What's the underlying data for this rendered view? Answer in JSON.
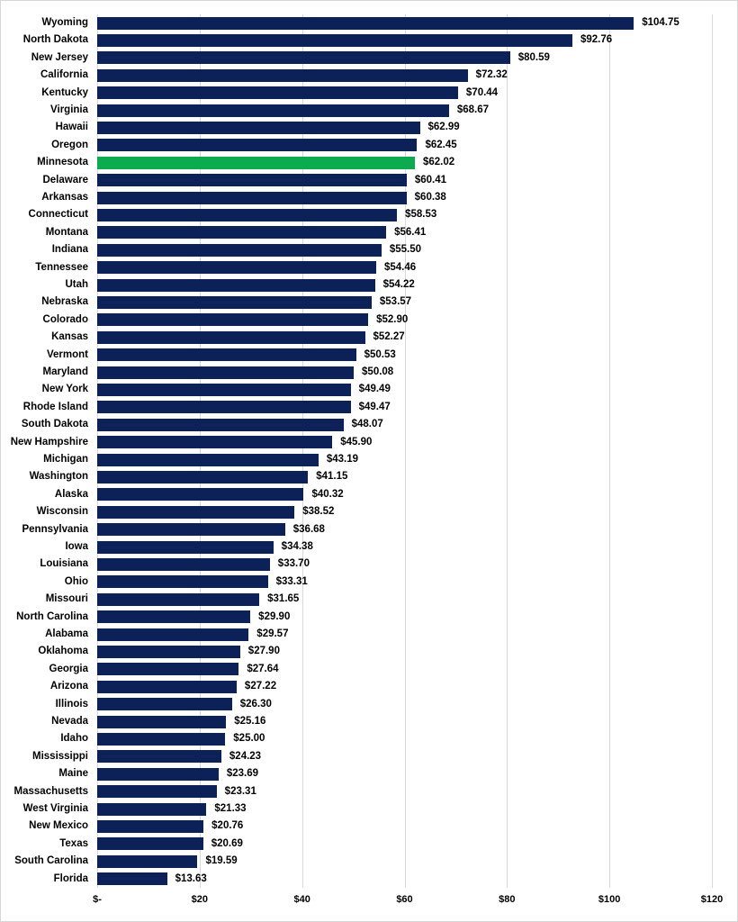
{
  "chart_data": {
    "type": "bar",
    "orientation": "horizontal",
    "title": "",
    "xlabel": "",
    "ylabel": "",
    "xlim": [
      0,
      120
    ],
    "grid": true,
    "legend": "none",
    "x_ticks": [
      "$-",
      "$20",
      "$40",
      "$60",
      "$80",
      "$100",
      "$120"
    ],
    "x_tick_values": [
      0,
      20,
      40,
      60,
      80,
      100,
      120
    ],
    "bar_color": "#0b2158",
    "highlight_color": "#0cab4f",
    "highlighted_category": "Minnesota",
    "value_prefix": "$",
    "categories": [
      "Wyoming",
      "North Dakota",
      "New Jersey",
      "California",
      "Kentucky",
      "Virginia",
      "Hawaii",
      "Oregon",
      "Minnesota",
      "Delaware",
      "Arkansas",
      "Connecticut",
      "Montana",
      "Indiana",
      "Tennessee",
      "Utah",
      "Nebraska",
      "Colorado",
      "Kansas",
      "Vermont",
      "Maryland",
      "New York",
      "Rhode Island",
      "South Dakota",
      "New Hampshire",
      "Michigan",
      "Washington",
      "Alaska",
      "Wisconsin",
      "Pennsylvania",
      "Iowa",
      "Louisiana",
      "Ohio",
      "Missouri",
      "North Carolina",
      "Alabama",
      "Oklahoma",
      "Georgia",
      "Arizona",
      "Illinois",
      "Nevada",
      "Idaho",
      "Mississippi",
      "Maine",
      "Massachusetts",
      "West Virginia",
      "New Mexico",
      "Texas",
      "South Carolina",
      "Florida"
    ],
    "values": [
      104.75,
      92.76,
      80.59,
      72.32,
      70.44,
      68.67,
      62.99,
      62.45,
      62.02,
      60.41,
      60.38,
      58.53,
      56.41,
      55.5,
      54.46,
      54.22,
      53.57,
      52.9,
      52.27,
      50.53,
      50.08,
      49.49,
      49.47,
      48.07,
      45.9,
      43.19,
      41.15,
      40.32,
      38.52,
      36.68,
      34.38,
      33.7,
      33.31,
      31.65,
      29.9,
      29.57,
      27.9,
      27.64,
      27.22,
      26.3,
      25.16,
      25.0,
      24.23,
      23.69,
      23.31,
      21.33,
      20.76,
      20.69,
      19.59,
      13.63
    ]
  }
}
